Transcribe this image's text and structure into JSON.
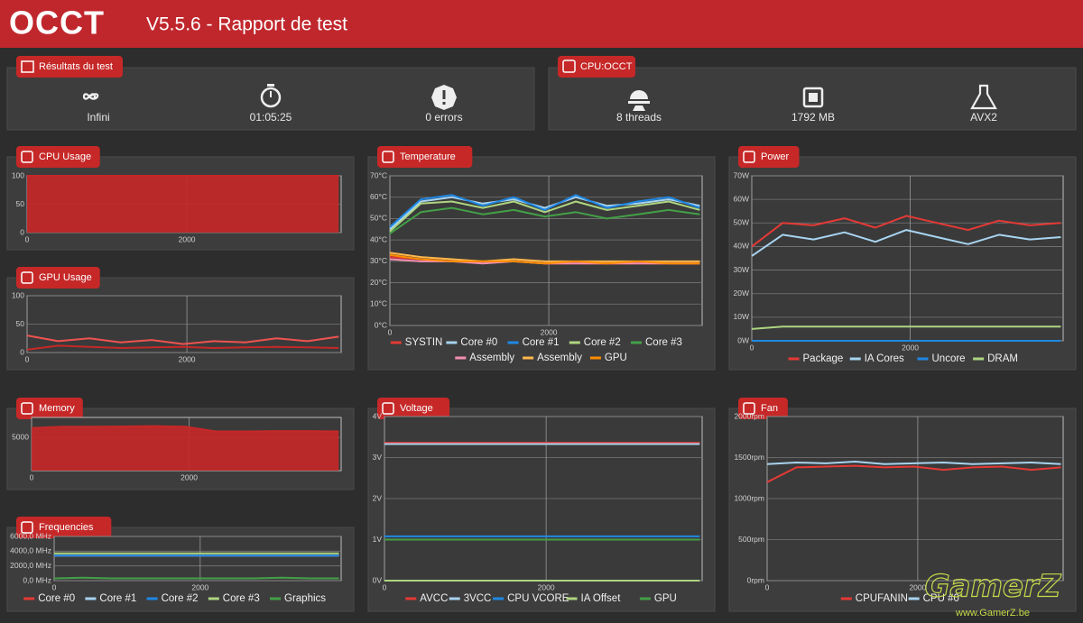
{
  "header": {
    "logo": "OCCT",
    "title": "V5.5.6 - Rapport de test"
  },
  "results": {
    "title": "Résultats du test",
    "items": [
      "Infini",
      "01:05:25",
      "0 errors"
    ]
  },
  "cpu": {
    "title": "CPU:OCCT",
    "items": [
      "8 threads",
      "1792 MB",
      "AVX2"
    ]
  },
  "watermark": {
    "text": "GamerZ",
    "url": "www.GamerZ.be"
  },
  "chart_data": [
    {
      "type": "area",
      "title": "CPU Usage",
      "x": [
        0,
        390,
        780,
        1170,
        1560,
        1950,
        2340,
        2730,
        3120,
        3510,
        3900
      ],
      "xlim": [
        0,
        3930
      ],
      "xticks": [
        0,
        2000
      ],
      "ylim": [
        0,
        100
      ],
      "yticks": [
        0,
        50,
        100
      ],
      "series": [
        {
          "color": "#c62828",
          "values": [
            100,
            100,
            100,
            100,
            100,
            100,
            100,
            100,
            100,
            100,
            100
          ]
        }
      ]
    },
    {
      "type": "line",
      "title": "GPU Usage",
      "x": [
        0,
        390,
        780,
        1170,
        1560,
        1950,
        2340,
        2730,
        3120,
        3510,
        3900
      ],
      "xlim": [
        0,
        3930
      ],
      "xticks": [
        0,
        2000
      ],
      "ylim": [
        0,
        100
      ],
      "yticks": [
        0,
        50,
        100
      ],
      "series": [
        {
          "color": "#ef5350",
          "values": [
            30,
            20,
            25,
            18,
            22,
            15,
            20,
            18,
            25,
            20,
            28
          ]
        },
        {
          "color": "#c62828",
          "values": [
            5,
            12,
            10,
            8,
            9,
            10,
            8,
            9,
            10,
            9,
            8
          ]
        }
      ]
    },
    {
      "type": "area",
      "title": "Memory",
      "x": [
        0,
        390,
        780,
        1170,
        1560,
        1950,
        2340,
        2730,
        3120,
        3510,
        3900
      ],
      "xlim": [
        0,
        3930
      ],
      "xticks": [
        0,
        2000
      ],
      "ylim": [
        0,
        8000
      ],
      "yticks": [
        5000
      ],
      "series": [
        {
          "color": "#c62828",
          "values": [
            6400,
            6600,
            6600,
            6650,
            6700,
            6600,
            5900,
            5900,
            5950,
            5950,
            5900
          ]
        }
      ]
    },
    {
      "type": "line",
      "title": "Frequencies",
      "x": [
        0,
        390,
        780,
        1170,
        1560,
        1950,
        2340,
        2730,
        3120,
        3510,
        3900
      ],
      "xlim": [
        0,
        3930
      ],
      "xticks": [
        0,
        2000
      ],
      "ylim": [
        0,
        6000
      ],
      "yticks": [
        {
          "value": 0,
          "label": "0,0 MHz"
        },
        {
          "value": 2000,
          "label": "2000,0 MHz"
        },
        {
          "value": 4000,
          "label": "4000,0 MHz"
        },
        {
          "value": 6000,
          "label": "6000,0 MHz"
        }
      ],
      "series": [
        {
          "name": "Core #0",
          "color": "#e53935",
          "values": [
            3400,
            3400,
            3400,
            3400,
            3400,
            3400,
            3400,
            3400,
            3400,
            3400,
            3400
          ]
        },
        {
          "name": "Core #1",
          "color": "#a8d4f0",
          "values": [
            3400,
            3400,
            3400,
            3400,
            3400,
            3400,
            3400,
            3400,
            3400,
            3400,
            3400
          ]
        },
        {
          "name": "Core #2",
          "color": "#1e88e5",
          "values": [
            3400,
            3400,
            3400,
            3400,
            3400,
            3400,
            3400,
            3400,
            3400,
            3400,
            3400
          ]
        },
        {
          "name": "Core #3",
          "color": "#aed581",
          "values": [
            3700,
            3700,
            3700,
            3700,
            3700,
            3700,
            3700,
            3700,
            3700,
            3700,
            3700
          ]
        },
        {
          "name": "Graphics",
          "color": "#43a047",
          "values": [
            300,
            400,
            300,
            300,
            300,
            300,
            300,
            300,
            400,
            300,
            300
          ]
        }
      ]
    },
    {
      "type": "line",
      "title": "Temperature",
      "x": [
        0,
        390,
        780,
        1170,
        1560,
        1950,
        2340,
        2730,
        3120,
        3510,
        3900
      ],
      "xlim": [
        0,
        3930
      ],
      "xticks": [
        0,
        2000
      ],
      "ylim": [
        0,
        70
      ],
      "yticks": [
        {
          "value": 0,
          "label": "0°C"
        },
        {
          "value": 10,
          "label": "10°C"
        },
        {
          "value": 20,
          "label": "20°C"
        },
        {
          "value": 30,
          "label": "30°C"
        },
        {
          "value": 40,
          "label": "40°C"
        },
        {
          "value": 50,
          "label": "50°C"
        },
        {
          "value": 60,
          "label": "60°C"
        },
        {
          "value": 70,
          "label": "70°C"
        }
      ],
      "series": [
        {
          "name": "SYSTIN",
          "color": "#e53935",
          "values": [
            32,
            31,
            30,
            30,
            30,
            29,
            29,
            29,
            29,
            29,
            29
          ]
        },
        {
          "name": "Core #0",
          "color": "#a8d4f0",
          "values": [
            45,
            58,
            60,
            57,
            59,
            55,
            60,
            56,
            57,
            59,
            56
          ]
        },
        {
          "name": "Core #1",
          "color": "#1e88e5",
          "values": [
            46,
            59,
            61,
            56,
            60,
            54,
            61,
            55,
            58,
            60,
            55
          ]
        },
        {
          "name": "Core #2",
          "color": "#aed581",
          "values": [
            44,
            57,
            58,
            55,
            58,
            53,
            58,
            54,
            56,
            58,
            54
          ]
        },
        {
          "name": "Core #3",
          "color": "#43a047",
          "values": [
            43,
            53,
            55,
            52,
            54,
            51,
            53,
            50,
            52,
            54,
            52
          ]
        },
        {
          "name": "Assembly",
          "color": "#f48fb1",
          "values": [
            31,
            30,
            30,
            29,
            30,
            29,
            29,
            29,
            29,
            29,
            29
          ]
        },
        {
          "name": "Assembly",
          "color": "#ffb74d",
          "values": [
            34,
            32,
            31,
            30,
            31,
            30,
            30,
            30,
            30,
            30,
            30
          ]
        },
        {
          "name": "GPU",
          "color": "#fb8c00",
          "values": [
            33,
            31,
            30,
            30,
            30,
            29,
            30,
            29,
            30,
            29,
            29
          ]
        }
      ]
    },
    {
      "type": "line",
      "title": "Voltage",
      "x": [
        0,
        390,
        780,
        1170,
        1560,
        1950,
        2340,
        2730,
        3120,
        3510,
        3900
      ],
      "xlim": [
        0,
        3930
      ],
      "xticks": [
        0,
        2000
      ],
      "ylim": [
        0,
        4
      ],
      "yticks": [
        {
          "value": 0,
          "label": "0V"
        },
        {
          "value": 1,
          "label": "1V"
        },
        {
          "value": 2,
          "label": "2V"
        },
        {
          "value": 3,
          "label": "3V"
        },
        {
          "value": 4,
          "label": "4V"
        }
      ],
      "series": [
        {
          "name": "AVCC",
          "color": "#e53935",
          "values": [
            3.36,
            3.36,
            3.36,
            3.36,
            3.36,
            3.36,
            3.36,
            3.36,
            3.36,
            3.36,
            3.36
          ]
        },
        {
          "name": "3VCC",
          "color": "#a8d4f0",
          "values": [
            3.33,
            3.33,
            3.33,
            3.33,
            3.33,
            3.33,
            3.33,
            3.33,
            3.33,
            3.33,
            3.33
          ]
        },
        {
          "name": "CPU VCORE",
          "color": "#1e88e5",
          "values": [
            1.08,
            1.08,
            1.08,
            1.08,
            1.08,
            1.08,
            1.08,
            1.08,
            1.08,
            1.08,
            1.08
          ]
        },
        {
          "name": "IA Offset",
          "color": "#aed581",
          "values": [
            0,
            0,
            0,
            0,
            0,
            0,
            0,
            0,
            0,
            0,
            0
          ]
        },
        {
          "name": "GPU",
          "color": "#43a047",
          "values": [
            1.0,
            1.0,
            1.0,
            1.0,
            1.0,
            1.0,
            1.0,
            1.0,
            1.0,
            1.0,
            1.0
          ]
        }
      ]
    },
    {
      "type": "line",
      "title": "Power",
      "x": [
        0,
        390,
        780,
        1170,
        1560,
        1950,
        2340,
        2730,
        3120,
        3510,
        3900
      ],
      "xlim": [
        0,
        3930
      ],
      "xticks": [
        0,
        2000
      ],
      "ylim": [
        0,
        70
      ],
      "yticks": [
        {
          "value": 0,
          "label": "0W"
        },
        {
          "value": 10,
          "label": "10W"
        },
        {
          "value": 20,
          "label": "20W"
        },
        {
          "value": 30,
          "label": "30W"
        },
        {
          "value": 40,
          "label": "40W"
        },
        {
          "value": 50,
          "label": "50W"
        },
        {
          "value": 60,
          "label": "60W"
        },
        {
          "value": 70,
          "label": "70W"
        }
      ],
      "series": [
        {
          "name": "Package",
          "color": "#e53935",
          "values": [
            40,
            50,
            49,
            52,
            48,
            53,
            50,
            47,
            51,
            49,
            50
          ]
        },
        {
          "name": "IA Cores",
          "color": "#a8d4f0",
          "values": [
            36,
            45,
            43,
            46,
            42,
            47,
            44,
            41,
            45,
            43,
            44
          ]
        },
        {
          "name": "Uncore",
          "color": "#1e88e5",
          "values": [
            0,
            0,
            0,
            0,
            0,
            0,
            0,
            0,
            0,
            0,
            0
          ]
        },
        {
          "name": "DRAM",
          "color": "#aed581",
          "values": [
            5,
            6,
            6,
            6,
            6,
            6,
            6,
            6,
            6,
            6,
            6
          ]
        }
      ]
    },
    {
      "type": "line",
      "title": "Fan",
      "x": [
        0,
        390,
        780,
        1170,
        1560,
        1950,
        2340,
        2730,
        3120,
        3510,
        3900
      ],
      "xlim": [
        0,
        3930
      ],
      "xticks": [
        0,
        2000
      ],
      "ylim": [
        0,
        2000
      ],
      "yticks": [
        {
          "value": 0,
          "label": "0rpm"
        },
        {
          "value": 500,
          "label": "500rpm"
        },
        {
          "value": 1000,
          "label": "1000rpm"
        },
        {
          "value": 1500,
          "label": "1500rpm"
        },
        {
          "value": 2000,
          "label": "2000rpm"
        }
      ],
      "series": [
        {
          "name": "CPUFANIN",
          "color": "#e53935",
          "values": [
            1200,
            1380,
            1390,
            1400,
            1380,
            1390,
            1350,
            1380,
            1390,
            1350,
            1380
          ]
        },
        {
          "name": "CPU #0",
          "color": "#a8d4f0",
          "values": [
            1420,
            1440,
            1430,
            1450,
            1420,
            1430,
            1440,
            1420,
            1430,
            1440,
            1420
          ]
        }
      ]
    }
  ]
}
